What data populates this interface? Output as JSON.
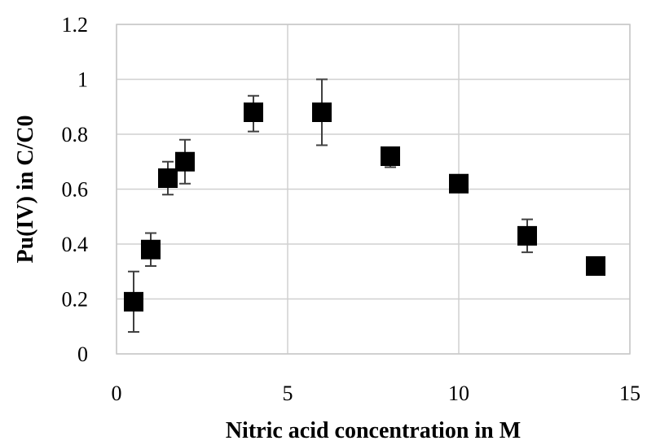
{
  "chart_data": {
    "type": "scatter",
    "title": "",
    "xlabel": "Nitric acid concentration in M",
    "ylabel": "Pu(IV) in C/C0",
    "xlim": [
      0,
      15
    ],
    "ylim": [
      0,
      1.2
    ],
    "x_ticks": [
      "0",
      "5",
      "10",
      "15"
    ],
    "y_ticks": [
      "0",
      "0.2",
      "0.4",
      "0.6",
      "0.8",
      "1",
      "1.2"
    ],
    "grid": true,
    "marker": "square",
    "marker_color": "#000000",
    "series": [
      {
        "points": [
          {
            "x": 0.5,
            "y": 0.19,
            "err_low": 0.11,
            "err_high": 0.11
          },
          {
            "x": 1,
            "y": 0.38,
            "err_low": 0.06,
            "err_high": 0.06
          },
          {
            "x": 1.5,
            "y": 0.64,
            "err_low": 0.06,
            "err_high": 0.06
          },
          {
            "x": 2,
            "y": 0.7,
            "err_low": 0.08,
            "err_high": 0.08
          },
          {
            "x": 4,
            "y": 0.88,
            "err_low": 0.07,
            "err_high": 0.06
          },
          {
            "x": 6,
            "y": 0.88,
            "err_low": 0.12,
            "err_high": 0.12
          },
          {
            "x": 8,
            "y": 0.72,
            "err_low": 0.04,
            "err_high": 0.0
          },
          {
            "x": 10,
            "y": 0.62,
            "err_low": 0.03,
            "err_high": 0.03
          },
          {
            "x": 12,
            "y": 0.43,
            "err_low": 0.06,
            "err_high": 0.06
          },
          {
            "x": 14,
            "y": 0.32,
            "err_low": 0.0,
            "err_high": 0.0
          }
        ]
      }
    ]
  }
}
